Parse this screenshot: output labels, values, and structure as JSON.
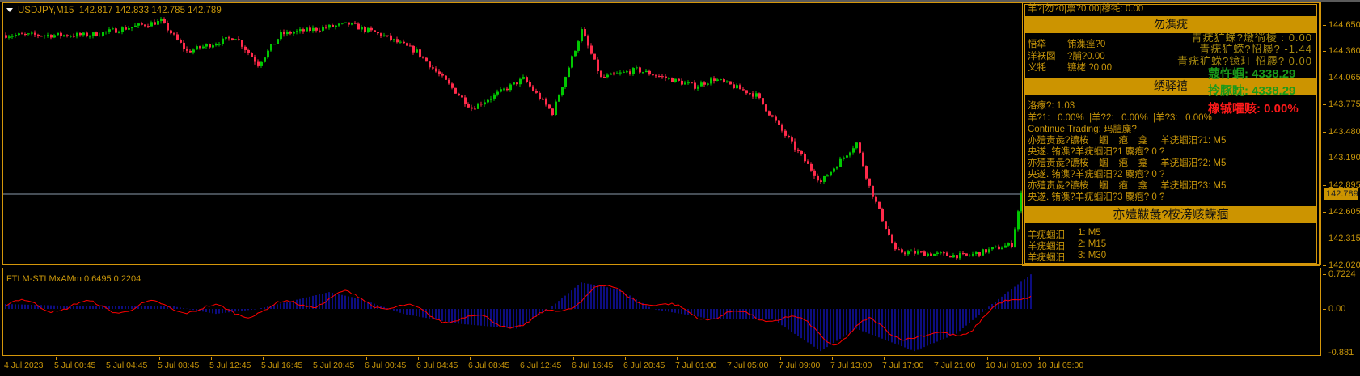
{
  "chart": {
    "symbol_label": "USDJPY,M15",
    "ohlc": "142.817 142.833 142.785 142.789",
    "current_price": "142.789",
    "colors": {
      "bull": "#00c800",
      "bear": "#ff2a4a",
      "frame": "#d4960a",
      "price_line": "#8c9cac"
    },
    "price_ticks": [
      "144.650",
      "144.360",
      "144.065",
      "143.775",
      "143.480",
      "143.190",
      "142.895",
      "142.605",
      "142.315",
      "142.020"
    ],
    "price_range": [
      142.02,
      144.65
    ],
    "time_labels": [
      "4 Jul 2023",
      "5 Jul 00:45",
      "5 Jul 04:45",
      "5 Jul 08:45",
      "5 Jul 12:45",
      "5 Jul 16:45",
      "5 Jul 20:45",
      "6 Jul 00:45",
      "6 Jul 04:45",
      "6 Jul 08:45",
      "6 Jul 12:45",
      "6 Jul 16:45",
      "6 Jul 20:45",
      "7 Jul 01:00",
      "7 Jul 05:00",
      "7 Jul 09:00",
      "7 Jul 13:00",
      "7 Jul 17:00",
      "7 Jul 21:00",
      "10 Jul 01:00",
      "10 Jul 05:00"
    ],
    "price_path": [
      [
        0,
        144.54
      ],
      [
        26,
        144.54
      ],
      [
        48,
        144.69
      ],
      [
        56,
        144.36
      ],
      [
        71,
        144.52
      ],
      [
        78,
        144.22
      ],
      [
        85,
        144.55
      ],
      [
        106,
        144.66
      ],
      [
        117,
        144.53
      ],
      [
        127,
        144.36
      ],
      [
        144,
        143.74
      ],
      [
        160,
        144.06
      ],
      [
        169,
        143.69
      ],
      [
        178,
        144.59
      ],
      [
        184,
        144.07
      ],
      [
        195,
        144.16
      ],
      [
        213,
        143.98
      ],
      [
        219,
        144.06
      ],
      [
        232,
        143.88
      ],
      [
        240,
        143.49
      ],
      [
        252,
        142.93
      ],
      [
        263,
        143.36
      ],
      [
        267,
        142.88
      ],
      [
        275,
        142.17
      ],
      [
        297,
        142.12
      ],
      [
        311,
        142.25
      ],
      [
        314,
        142.79
      ]
    ]
  },
  "indicator": {
    "label": "FTLM-STLMxAMm 0.6495 0.2204",
    "ticks": [
      "0.7224",
      "0.00",
      "-0.881"
    ],
    "range": [
      -0.881,
      0.7224
    ],
    "colors": {
      "histogram": "#1a1aff",
      "signal": "#ff0000"
    },
    "histogram_path": [
      [
        0,
        0.1
      ],
      [
        26,
        0.05
      ],
      [
        52,
        0.05
      ],
      [
        65,
        -0.1
      ],
      [
        78,
        0.0
      ],
      [
        100,
        0.35
      ],
      [
        110,
        0.2
      ],
      [
        123,
        -0.1
      ],
      [
        140,
        -0.3
      ],
      [
        158,
        -0.4
      ],
      [
        168,
        0.0
      ],
      [
        178,
        0.55
      ],
      [
        190,
        0.4
      ],
      [
        200,
        0.0
      ],
      [
        218,
        -0.2
      ],
      [
        237,
        -0.2
      ],
      [
        252,
        -0.85
      ],
      [
        263,
        -0.4
      ],
      [
        281,
        -0.85
      ],
      [
        294,
        -0.5
      ],
      [
        305,
        0.1
      ],
      [
        317,
        0.72
      ]
    ]
  },
  "panel": {
    "top_line": "羊?|勿?0|禀?0.00|穆牦: 0.00",
    "section1_title": "勿潗疣",
    "left_rows": [
      {
        "label": "悟牮",
        "value": "铕潗痤?0"
      },
      {
        "label": "洋袄図",
        "value": "?脯?0.00"
      },
      {
        "label": "义牦",
        "value": "镳栳   ?0.00"
      }
    ],
    "right_rows": [
      "青疣犷蝾?燉徜棱   :  0.00",
      "青疣犷蝾?怊屦? -1.44",
      "青疣犷蝾?镱玎 怊屦?  0.00"
    ],
    "balance_label": "蔻忤蝈:",
    "balance_value": "4338.29",
    "equity_label": "拎豚眈:",
    "equity_value": "4338.29",
    "drawdown_label": "橡铖嚯赅:",
    "drawdown_value": "0.00%",
    "section2_title": "绣驿禧",
    "spread": "洛瘃?: 1.03",
    "tf_pct": "羊?1:   0.00%  |羊?2:   0.00%  |羊?3:   0.00%",
    "continue": "Continue Trading: 玛膻麇?",
    "signal_rows": [
      "亦殪责彘?镳桉    蝈    疱    龛     羊疣蝈汨?1: M5",
      "央遂. 铕潗?羊疣蝈汨?1 麇疱? 0 ?",
      "亦殪责彘?镳桉    蝈    疱    龛     羊疣蝈汨?2: M5",
      "央遂. 铕潗?羊疣蝈汨?2 麇疱? 0 ?",
      "亦殪责彘?镳桉    蝈    疱    龛     羊疣蝈汨?3: M5",
      "央遂. 铕潗?羊疣蝈汨?3 麇疱? 0 ?"
    ],
    "section3_title": "亦殪黻彘?桉滂赅蝾痼",
    "strategy_rows": [
      {
        "label": "羊疣蝈汨",
        "value": "1: M5"
      },
      {
        "label": "羊疣蝈汨",
        "value": "2: M15"
      },
      {
        "label": "羊疣蝈汨",
        "value": "3: M30"
      }
    ]
  }
}
